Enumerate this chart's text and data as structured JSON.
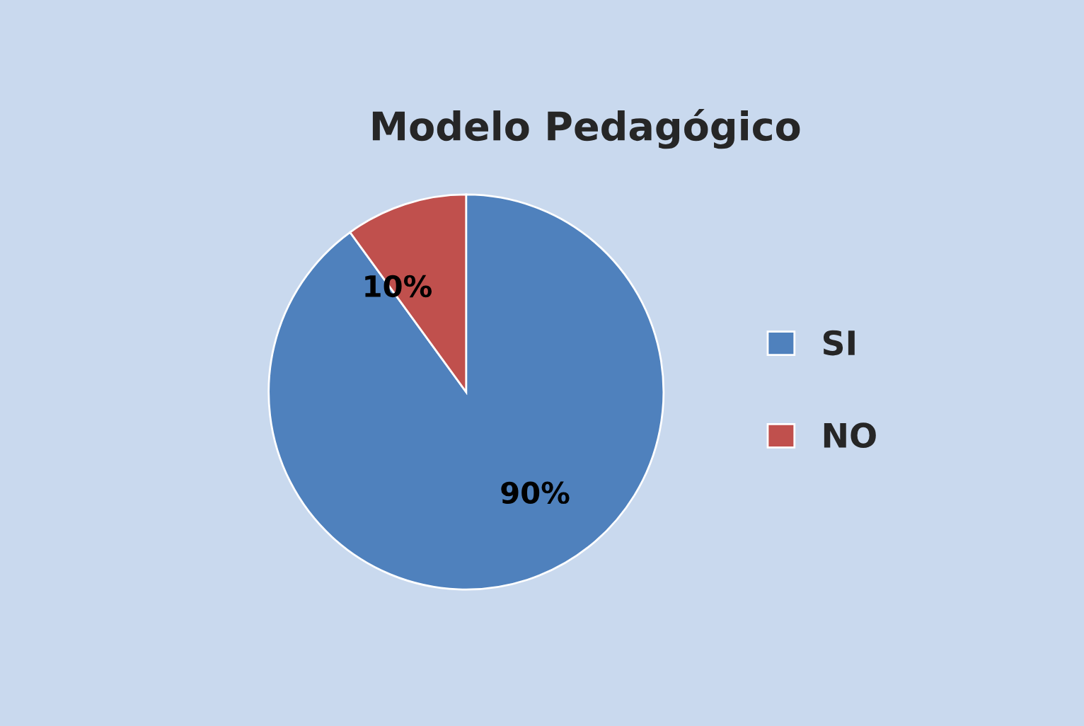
{
  "chart_data": {
    "type": "pie",
    "title": "Modelo Pedagógico",
    "categories": [
      "SI",
      "NO"
    ],
    "values": [
      90,
      10
    ],
    "colors": [
      "#4f81bd",
      "#c0504d"
    ],
    "value_labels": [
      "90%",
      "10%"
    ],
    "legend": "right"
  }
}
